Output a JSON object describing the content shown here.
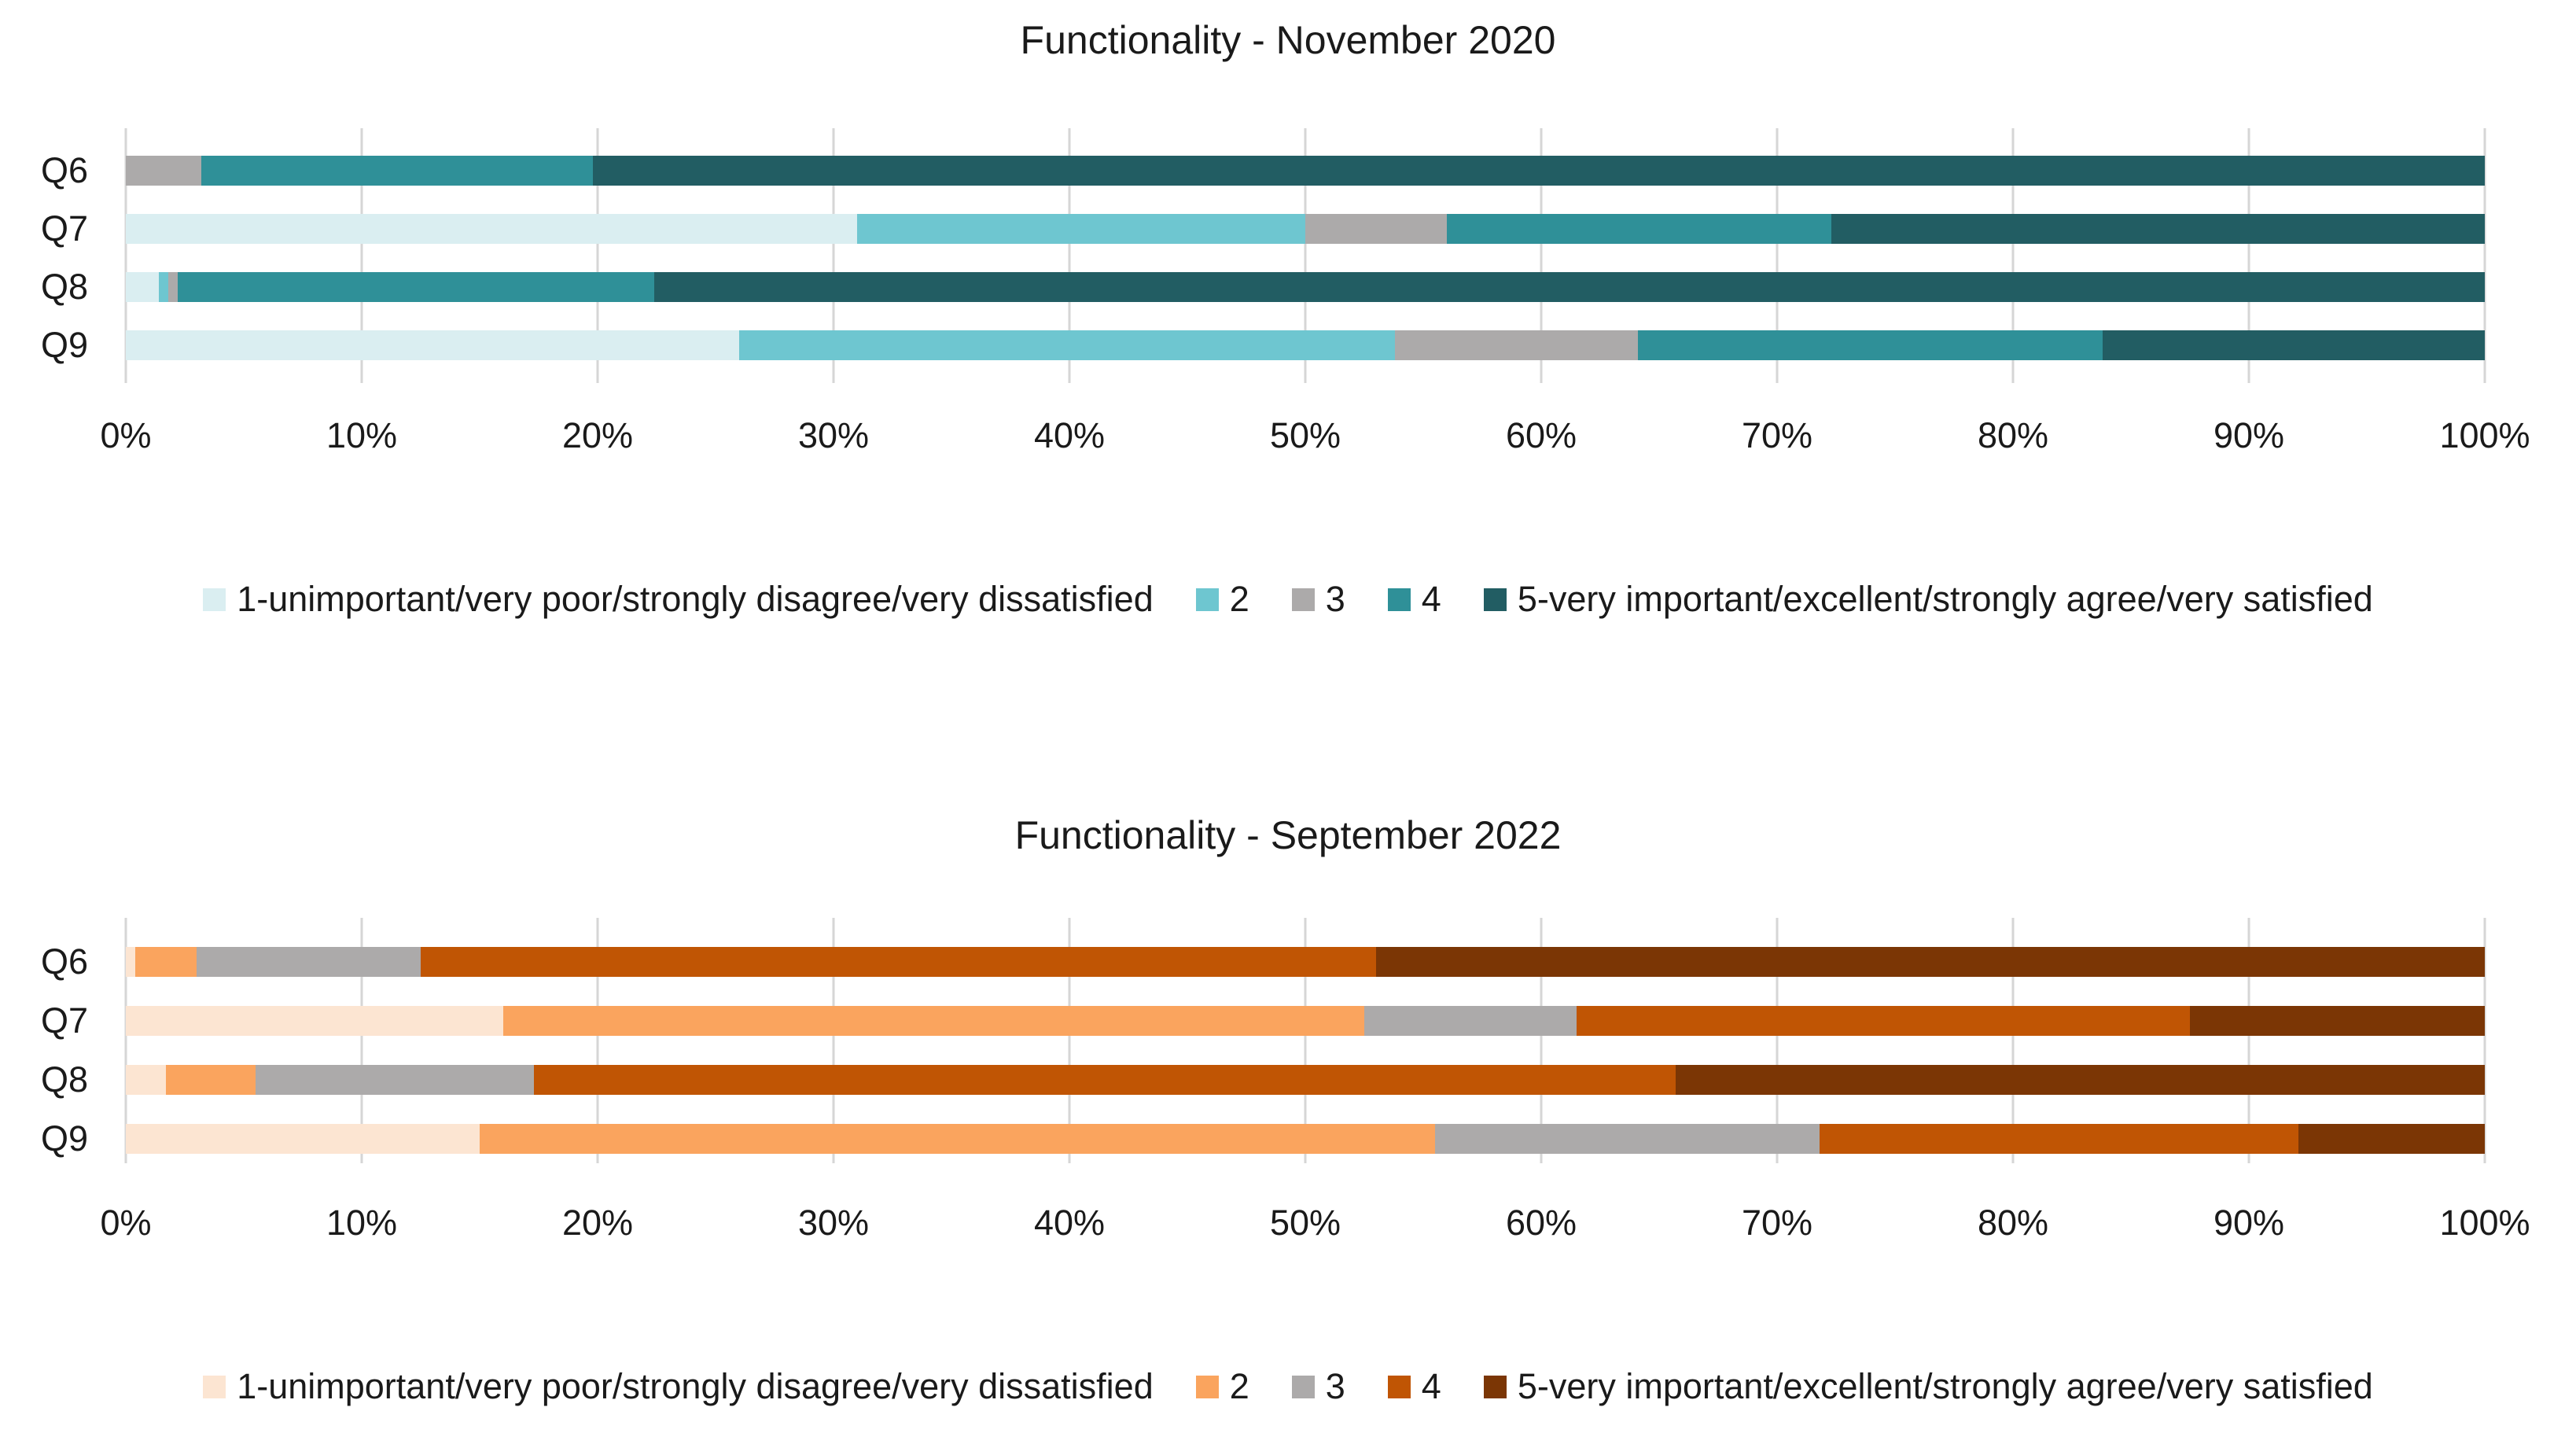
{
  "chart_data": [
    {
      "type": "bar",
      "variant": "stacked-100-horizontal",
      "title": "Functionality - November 2020",
      "categories": [
        "Q6",
        "Q7",
        "Q8",
        "Q9"
      ],
      "series": [
        {
          "name": "1-unimportant/very poor/strongly disagree/very dissatisfied",
          "color": "#DAEEF1",
          "values": [
            0,
            31,
            1.4,
            26
          ]
        },
        {
          "name": "2",
          "color": "#6EC6D0",
          "values": [
            0,
            19,
            0.4,
            27.8
          ]
        },
        {
          "name": "3",
          "color": "#ACAAAA",
          "values": [
            3.2,
            6,
            0.4,
            10.3
          ]
        },
        {
          "name": "4",
          "color": "#2F9098",
          "values": [
            16.6,
            16.3,
            20.2,
            19.7
          ]
        },
        {
          "name": "5-very important/excellent/strongly agree/very satisfied",
          "color": "#225D63",
          "values": [
            80.2,
            27.7,
            77.6,
            16.2
          ]
        }
      ],
      "xlim": [
        0,
        100
      ],
      "x_tick_labels": [
        "0%",
        "10%",
        "20%",
        "30%",
        "40%",
        "50%",
        "60%",
        "70%",
        "80%",
        "90%",
        "100%"
      ],
      "gridlines": true,
      "legend_position": "bottom"
    },
    {
      "type": "bar",
      "variant": "stacked-100-horizontal",
      "title": "Functionality - September 2022",
      "categories": [
        "Q6",
        "Q7",
        "Q8",
        "Q9"
      ],
      "series": [
        {
          "name": "1-unimportant/very poor/strongly disagree/very dissatisfied",
          "color": "#FCE5D2",
          "values": [
            0.4,
            16,
            1.7,
            15
          ]
        },
        {
          "name": "2",
          "color": "#FAA45E",
          "values": [
            2.6,
            36.5,
            3.8,
            40.5
          ]
        },
        {
          "name": "3",
          "color": "#ACAAAA",
          "values": [
            9.5,
            9,
            11.8,
            16.3
          ]
        },
        {
          "name": "4",
          "color": "#C05504",
          "values": [
            40.5,
            26,
            48.4,
            20.3
          ]
        },
        {
          "name": "5-very important/excellent/strongly agree/very satisfied",
          "color": "#7B3605",
          "values": [
            47,
            12.5,
            34.3,
            7.9
          ]
        }
      ],
      "xlim": [
        0,
        100
      ],
      "x_tick_labels": [
        "0%",
        "10%",
        "20%",
        "30%",
        "40%",
        "50%",
        "60%",
        "70%",
        "80%",
        "90%",
        "100%"
      ],
      "gridlines": true,
      "legend_position": "bottom"
    }
  ]
}
